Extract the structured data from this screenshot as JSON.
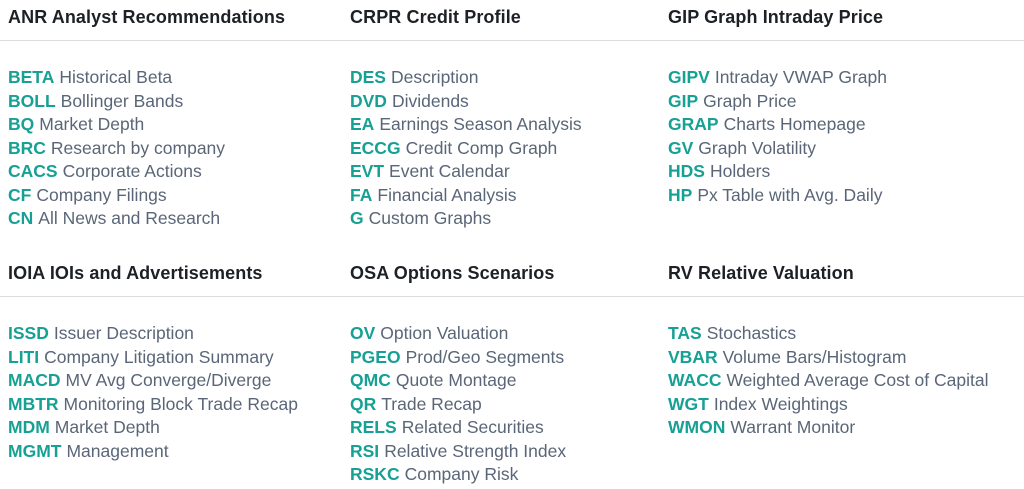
{
  "colors": {
    "code_accent": "#17a094",
    "label_text": "#5a6678",
    "header_text": "#1d2126",
    "divider": "#dcdcdc",
    "background": "#ffffff"
  },
  "sections": [
    {
      "title": "ANR Analyst Recommendations",
      "items": [
        {
          "code": "BETA",
          "label": "Historical Beta"
        },
        {
          "code": "BOLL",
          "label": "Bollinger Bands"
        },
        {
          "code": "BQ",
          "label": "Market Depth"
        },
        {
          "code": "BRC",
          "label": "Research by company"
        },
        {
          "code": "CACS",
          "label": "Corporate Actions"
        },
        {
          "code": "CF",
          "label": "Company Filings"
        },
        {
          "code": "CN",
          "label": "All News and Research"
        }
      ]
    },
    {
      "title": "CRPR Credit Profile",
      "items": [
        {
          "code": "DES",
          "label": "Description"
        },
        {
          "code": "DVD",
          "label": "Dividends"
        },
        {
          "code": "EA",
          "label": "Earnings Season Analysis"
        },
        {
          "code": "ECCG",
          "label": "Credit Comp Graph"
        },
        {
          "code": "EVT",
          "label": "Event Calendar"
        },
        {
          "code": "FA",
          "label": "Financial Analysis"
        },
        {
          "code": "G",
          "label": "Custom Graphs"
        }
      ]
    },
    {
      "title": "GIP Graph Intraday Price",
      "items": [
        {
          "code": "GIPV",
          "label": "Intraday VWAP Graph"
        },
        {
          "code": "GIP",
          "label": "Graph Price"
        },
        {
          "code": "GRAP",
          "label": "Charts Homepage"
        },
        {
          "code": "GV",
          "label": "Graph Volatility"
        },
        {
          "code": "HDS",
          "label": "Holders"
        },
        {
          "code": "HP",
          "label": "Px Table with Avg. Daily"
        }
      ]
    },
    {
      "title": "IOIA IOIs and Advertisements",
      "items": [
        {
          "code": "ISSD",
          "label": "Issuer Description"
        },
        {
          "code": "LITI",
          "label": "Company Litigation Summary"
        },
        {
          "code": "MACD",
          "label": "MV Avg Converge/Diverge"
        },
        {
          "code": "MBTR",
          "label": "Monitoring Block Trade Recap"
        },
        {
          "code": "MDM",
          "label": "Market Depth"
        },
        {
          "code": "MGMT",
          "label": "Management"
        }
      ]
    },
    {
      "title": "OSA Options Scenarios",
      "items": [
        {
          "code": "OV",
          "label": "Option Valuation"
        },
        {
          "code": "PGEO",
          "label": "Prod/Geo Segments"
        },
        {
          "code": "QMC",
          "label": "Quote Montage"
        },
        {
          "code": "QR",
          "label": "Trade Recap"
        },
        {
          "code": "RELS",
          "label": "Related Securities"
        },
        {
          "code": "RSI",
          "label": "Relative Strength Index"
        },
        {
          "code": "RSKC",
          "label": "Company Risk"
        }
      ]
    },
    {
      "title": "RV Relative Valuation",
      "items": [
        {
          "code": "TAS",
          "label": "Stochastics"
        },
        {
          "code": "VBAR",
          "label": "Volume Bars/Histogram"
        },
        {
          "code": "WACC",
          "label": "Weighted Average Cost of Capital"
        },
        {
          "code": "WGT",
          "label": "Index Weightings"
        },
        {
          "code": "WMON",
          "label": "Warrant Monitor"
        }
      ]
    }
  ]
}
